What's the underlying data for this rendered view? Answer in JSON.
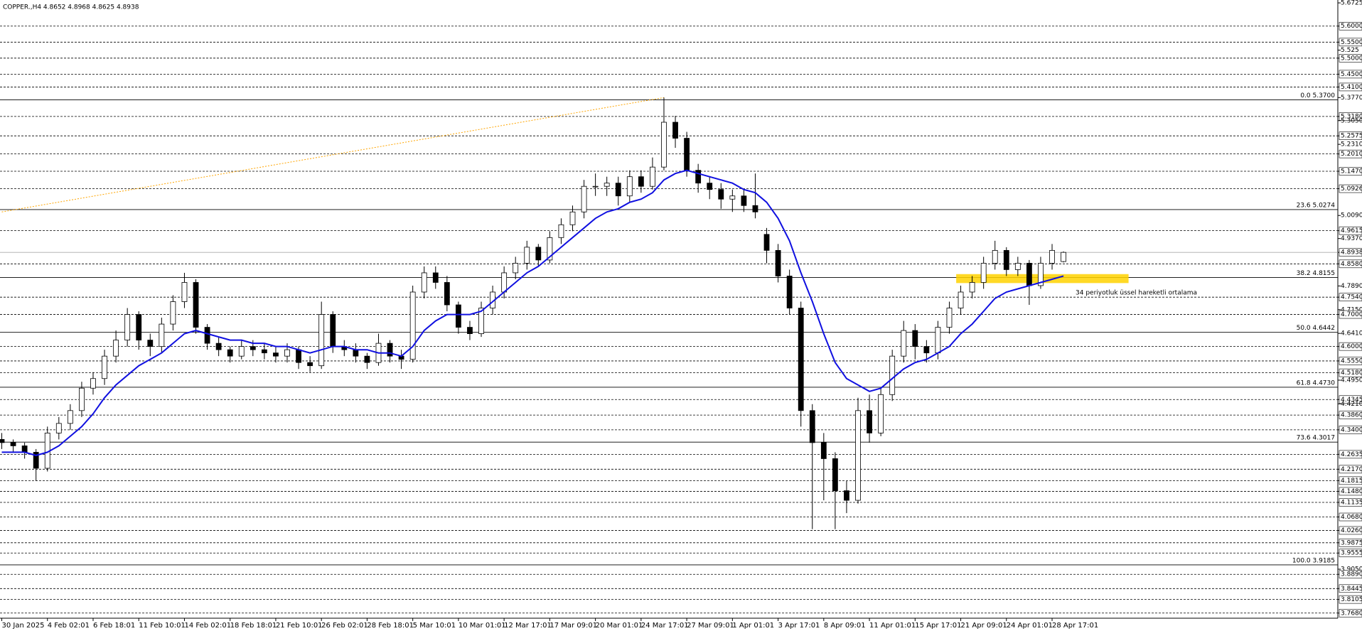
{
  "chart_data": {
    "type": "candlestick",
    "title": "COPPER.,H4  4.8652 4.8968 4.8625 4.8938",
    "categories": [
      "30 Jan 2025",
      null,
      null,
      null,
      "4 Feb 02:01",
      null,
      null,
      null,
      "6 Feb 18:01",
      null,
      null,
      null,
      "11 Feb 10:01",
      null,
      null,
      null,
      "14 Feb 02:01",
      null,
      null,
      null,
      "18 Feb 18:01",
      null,
      null,
      null,
      "21 Feb 10:01",
      null,
      null,
      null,
      "26 Feb 02:01",
      null,
      null,
      null,
      "28 Feb 18:01",
      null,
      null,
      null,
      "5 Mar 10:01",
      null,
      null,
      null,
      "10 Mar 01:01",
      null,
      null,
      null,
      "12 Mar 17:01",
      null,
      null,
      null,
      "17 Mar 09:01",
      null,
      null,
      null,
      "20 Mar 01:01",
      null,
      null,
      null,
      "24 Mar 17:01",
      null,
      null,
      null,
      "27 Mar 09:01",
      null,
      null,
      null,
      "1 Apr 01:01",
      null,
      null,
      null,
      "3 Apr 17:01",
      null,
      null,
      null,
      "8 Apr 09:01",
      null,
      null,
      null,
      "11 Apr 01:01",
      null,
      null,
      null,
      "15 Apr 17:01",
      null,
      null,
      null,
      "21 Apr 09:01",
      null,
      null,
      null,
      "24 Apr 01:01",
      null,
      null,
      null,
      "28 Apr 17:01",
      null
    ],
    "open": [
      4.31,
      4.3,
      4.29,
      4.27,
      4.22,
      4.33,
      4.36,
      4.4,
      4.47,
      4.5,
      4.57,
      4.62,
      4.7,
      4.62,
      4.6,
      4.67,
      4.74,
      4.8,
      4.66,
      4.61,
      4.59,
      4.57,
      4.6,
      4.59,
      4.58,
      4.57,
      4.59,
      4.55,
      4.54,
      4.7,
      4.6,
      4.59,
      4.57,
      4.55,
      4.61,
      4.57,
      4.56,
      4.77,
      4.83,
      4.8,
      4.73,
      4.66,
      4.64,
      4.72,
      4.77,
      4.83,
      4.86,
      4.91,
      4.87,
      4.94,
      4.98,
      5.02,
      5.1,
      5.1,
      5.11,
      5.07,
      5.13,
      5.1,
      5.16,
      5.3,
      5.25,
      5.15,
      5.11,
      5.09,
      5.06,
      5.07,
      5.04,
      4.95,
      4.9,
      4.82,
      4.72,
      4.4,
      4.3,
      4.25,
      4.15,
      4.12,
      4.4,
      4.33,
      4.45,
      4.57,
      4.65,
      4.6,
      4.58,
      4.66,
      4.72,
      4.77,
      4.8,
      4.86,
      4.9,
      4.84,
      4.86,
      4.79,
      4.86,
      4.8652
    ],
    "high": [
      4.33,
      4.31,
      4.3,
      4.28,
      4.35,
      4.38,
      4.42,
      4.49,
      4.52,
      4.59,
      4.65,
      4.72,
      4.71,
      4.64,
      4.69,
      4.76,
      4.83,
      4.81,
      4.67,
      4.63,
      4.6,
      4.62,
      4.62,
      4.61,
      4.6,
      4.61,
      4.6,
      4.57,
      4.74,
      4.71,
      4.62,
      4.61,
      4.58,
      4.64,
      4.62,
      4.59,
      4.79,
      4.85,
      4.85,
      4.82,
      4.74,
      4.68,
      4.74,
      4.79,
      4.85,
      4.88,
      4.93,
      4.92,
      4.96,
      5.0,
      5.04,
      5.12,
      5.14,
      5.13,
      5.13,
      5.15,
      5.15,
      5.19,
      5.377,
      5.32,
      5.27,
      5.17,
      5.13,
      5.11,
      5.09,
      5.09,
      5.14,
      4.97,
      4.92,
      4.84,
      4.74,
      4.42,
      4.33,
      4.27,
      4.18,
      4.44,
      4.45,
      4.47,
      4.59,
      4.68,
      4.67,
      4.62,
      4.68,
      4.74,
      4.79,
      4.82,
      4.88,
      4.93,
      4.91,
      4.88,
      4.87,
      4.88,
      4.92,
      4.8968
    ],
    "low": [
      4.28,
      4.27,
      4.25,
      4.18,
      4.21,
      4.31,
      4.34,
      4.38,
      4.45,
      4.48,
      4.55,
      4.6,
      4.59,
      4.57,
      4.58,
      4.65,
      4.72,
      4.64,
      4.59,
      4.57,
      4.55,
      4.56,
      4.57,
      4.56,
      4.55,
      4.55,
      4.53,
      4.52,
      4.53,
      4.58,
      4.57,
      4.55,
      4.53,
      4.54,
      4.55,
      4.53,
      4.55,
      4.75,
      4.78,
      4.71,
      4.64,
      4.62,
      4.63,
      4.7,
      4.75,
      4.81,
      4.84,
      4.85,
      4.86,
      4.92,
      4.96,
      5.0,
      5.07,
      5.07,
      5.04,
      5.05,
      5.08,
      5.09,
      5.15,
      5.22,
      5.13,
      5.08,
      5.06,
      5.03,
      5.02,
      5.02,
      5.0,
      4.86,
      4.8,
      4.7,
      4.35,
      4.03,
      4.12,
      4.03,
      4.08,
      4.11,
      4.3,
      4.32,
      4.43,
      4.55,
      4.56,
      4.55,
      4.56,
      4.64,
      4.7,
      4.75,
      4.78,
      4.84,
      4.82,
      4.82,
      4.73,
      4.78,
      4.84,
      4.8625
    ],
    "close": [
      4.3,
      4.29,
      4.27,
      4.22,
      4.33,
      4.36,
      4.4,
      4.47,
      4.5,
      4.57,
      4.62,
      4.7,
      4.62,
      4.6,
      4.67,
      4.74,
      4.8,
      4.66,
      4.61,
      4.59,
      4.57,
      4.6,
      4.59,
      4.58,
      4.57,
      4.59,
      4.55,
      4.54,
      4.7,
      4.6,
      4.59,
      4.57,
      4.55,
      4.61,
      4.57,
      4.56,
      4.77,
      4.83,
      4.8,
      4.73,
      4.66,
      4.64,
      4.72,
      4.77,
      4.83,
      4.86,
      4.91,
      4.87,
      4.94,
      4.98,
      5.02,
      5.1,
      5.1,
      5.11,
      5.07,
      5.13,
      5.1,
      5.16,
      5.3,
      5.25,
      5.15,
      5.11,
      5.09,
      5.06,
      5.07,
      5.04,
      5.02,
      4.9,
      4.82,
      4.72,
      4.4,
      4.3,
      4.25,
      4.15,
      4.12,
      4.4,
      4.33,
      4.45,
      4.57,
      4.65,
      4.6,
      4.58,
      4.66,
      4.72,
      4.77,
      4.8,
      4.86,
      4.9,
      4.84,
      4.86,
      4.79,
      4.86,
      4.9,
      4.8938
    ],
    "up_color": "#ffffff",
    "down_color": "#000000",
    "wick_color": "#000000",
    "ema": {
      "color": "#1010e0",
      "values": [
        4.27,
        4.27,
        4.27,
        4.26,
        4.27,
        4.29,
        4.32,
        4.35,
        4.39,
        4.44,
        4.48,
        4.51,
        4.54,
        4.56,
        4.58,
        4.61,
        4.64,
        4.65,
        4.64,
        4.63,
        4.62,
        4.62,
        4.61,
        4.61,
        4.6,
        4.6,
        4.59,
        4.58,
        4.59,
        4.6,
        4.6,
        4.59,
        4.59,
        4.58,
        4.58,
        4.57,
        4.6,
        4.65,
        4.68,
        4.7,
        4.7,
        4.7,
        4.71,
        4.74,
        4.77,
        4.8,
        4.83,
        4.85,
        4.88,
        4.91,
        4.94,
        4.97,
        5.0,
        5.02,
        5.03,
        5.05,
        5.06,
        5.08,
        5.12,
        5.14,
        5.15,
        5.14,
        5.13,
        5.12,
        5.11,
        5.09,
        5.08,
        5.05,
        5.0,
        4.93,
        4.83,
        4.74,
        4.64,
        4.55,
        4.5,
        4.48,
        4.46,
        4.47,
        4.5,
        4.53,
        4.55,
        4.56,
        4.58,
        4.6,
        4.64,
        4.67,
        4.71,
        4.75,
        4.77,
        4.78,
        4.79,
        4.8,
        4.81,
        4.82
      ]
    },
    "annotation": "34 periyotluk üssel hareketli ortalama",
    "annotation_color": "#1010e0",
    "trendline": {
      "color": "#ffa500",
      "x": [
        0,
        58
      ],
      "values": [
        5.02,
        5.377
      ]
    },
    "zone": {
      "color": "#ffd200",
      "x": [
        83.6,
        98.7
      ],
      "values": [
        4.798,
        4.826
      ]
    },
    "fibonacci": [
      {
        "label": "0.0 5.3700",
        "value": 5.37
      },
      {
        "label": "23.6 5.0274",
        "value": 5.0274
      },
      {
        "label": "38.2 4.8155",
        "value": 4.8155
      },
      {
        "label": "50.0 4.6442",
        "value": 4.6442
      },
      {
        "label": "61.8 4.4730",
        "value": 4.473
      },
      {
        "label": "73.6 4.3017",
        "value": 4.3017
      },
      {
        "label": "100.0 3.9185",
        "value": 3.9185
      }
    ],
    "levels": [
      5.6,
      5.55,
      5.5,
      5.45,
      5.41,
      5.318,
      5.2575,
      5.201,
      5.147,
      5.0926,
      4.9615,
      4.858,
      4.754,
      4.7,
      4.6,
      4.555,
      4.518,
      4.4345,
      4.386,
      4.34,
      4.2635,
      4.217,
      4.1815,
      4.148,
      4.1135,
      4.068,
      4.026,
      3.9875,
      3.9555,
      3.889,
      3.8445,
      3.8105,
      3.768
    ],
    "ylim": [
      3.752,
      5.6815
    ],
    "yticks": [
      5.6725,
      {
        "value": 5.6,
        "label": "5.6000"
      },
      {
        "value": 5.55,
        "label": "5.5500"
      },
      5.525,
      {
        "value": 5.5,
        "label": "5.5000"
      },
      {
        "value": 5.45,
        "label": "5.4500"
      },
      {
        "value": 5.41,
        "label": "5.4100"
      },
      {
        "value": 5.377,
        "label": "5.3770"
      },
      {
        "value": 5.318,
        "label": "5.3180"
      },
      {
        "value": 5.305,
        "label": "5.3050"
      },
      5.2575,
      {
        "value": 5.231,
        "label": "5.2310"
      },
      {
        "value": 5.201,
        "label": "5.2010"
      },
      {
        "value": 5.147,
        "label": "5.1470"
      },
      5.0926,
      {
        "value": 5.009,
        "label": "5.0090"
      },
      4.9615,
      {
        "value": 4.937,
        "label": "4.9370"
      },
      4.8938,
      {
        "value": 4.858,
        "label": "4.8580"
      },
      {
        "value": 4.789,
        "label": "4.7890"
      },
      {
        "value": 4.754,
        "label": "4.7540"
      },
      {
        "value": 4.715,
        "label": "4.7150"
      },
      {
        "value": 4.7,
        "label": "4.7000"
      },
      {
        "value": 4.641,
        "label": "4.6410"
      },
      {
        "value": 4.6,
        "label": "4.6000"
      },
      {
        "value": 4.555,
        "label": "4.5550"
      },
      {
        "value": 4.518,
        "label": "4.5180"
      },
      {
        "value": 4.495,
        "label": "4.4950"
      },
      4.4345,
      {
        "value": 4.421,
        "label": "4.4210"
      },
      {
        "value": 4.386,
        "label": "4.3860"
      },
      {
        "value": 4.34,
        "label": "4.3400"
      },
      4.2635,
      {
        "value": 4.217,
        "label": "4.2170"
      },
      4.1815,
      {
        "value": 4.148,
        "label": "4.1480"
      },
      4.1135,
      {
        "value": 4.068,
        "label": "4.0680"
      },
      {
        "value": 4.026,
        "label": "4.0260"
      },
      3.9875,
      3.9555,
      {
        "value": 3.905,
        "label": "3.9050"
      },
      {
        "value": 3.889,
        "label": "3.8890"
      },
      3.8445,
      3.8105,
      {
        "value": 3.768,
        "label": "3.7680"
      }
    ]
  }
}
